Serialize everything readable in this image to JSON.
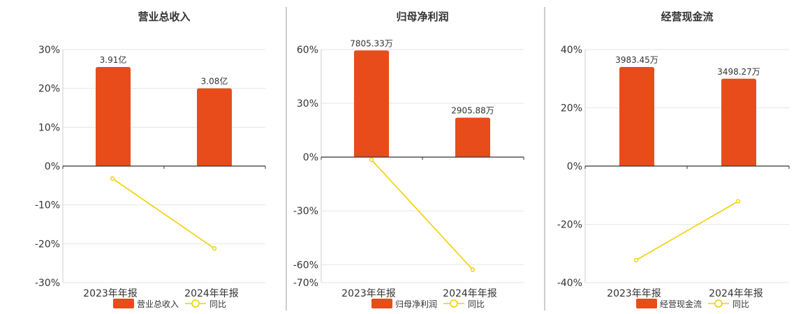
{
  "colors": {
    "bar": "#e84c1a",
    "line": "#f0d000",
    "grid": "#e6e6e6",
    "axis": "#333333",
    "divider": "#9e9e9e",
    "text": "#333333"
  },
  "chart_data": [
    {
      "type": "bar",
      "title": "营业总收入",
      "categories": [
        "2023年年报",
        "2024年年报"
      ],
      "yticks": [
        "30%",
        "20%",
        "10%",
        "0%",
        "-10%",
        "-20%",
        "-30%"
      ],
      "ylim": [
        -30,
        30
      ],
      "series": [
        {
          "name": "营业总收入",
          "kind": "bar",
          "values": [
            25.5,
            20.0
          ],
          "labels": [
            "3.91亿",
            "3.08亿"
          ]
        },
        {
          "name": "同比",
          "kind": "line",
          "values": [
            -3.2,
            -21.2
          ]
        }
      ]
    },
    {
      "type": "bar",
      "title": "归母净利润",
      "categories": [
        "2023年年报",
        "2024年年报"
      ],
      "yticks": [
        "60%",
        "30%",
        "0%",
        "-30%",
        "-60%",
        "-70%"
      ],
      "ylim": [
        -70,
        60
      ],
      "series": [
        {
          "name": "归母净利润",
          "kind": "bar",
          "values": [
            59.5,
            22.0
          ],
          "labels": [
            "7805.33万",
            "2905.88万"
          ]
        },
        {
          "name": "同比",
          "kind": "line",
          "values": [
            -1.5,
            -62.8
          ]
        }
      ]
    },
    {
      "type": "bar",
      "title": "经营现金流",
      "categories": [
        "2023年年报",
        "2024年年报"
      ],
      "yticks": [
        "40%",
        "20%",
        "0%",
        "-20%",
        "-40%"
      ],
      "ylim": [
        -40,
        40
      ],
      "series": [
        {
          "name": "经营现金流",
          "kind": "bar",
          "values": [
            34.0,
            30.0
          ],
          "labels": [
            "3983.45万",
            "3498.27万"
          ]
        },
        {
          "name": "同比",
          "kind": "line",
          "values": [
            -32.3,
            -12.1
          ]
        }
      ]
    }
  ]
}
